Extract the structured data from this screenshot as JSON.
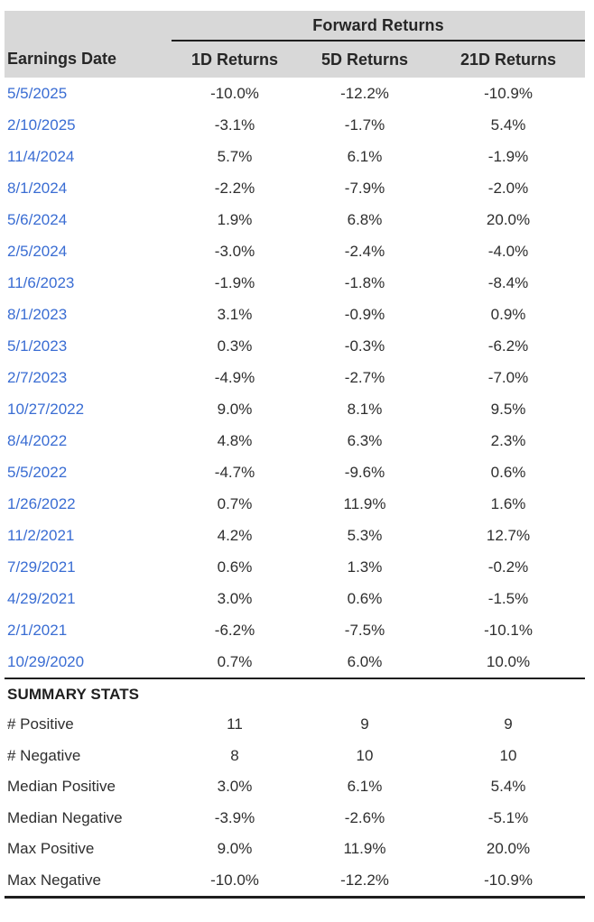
{
  "chart_data": {
    "type": "table",
    "title": "Forward Returns",
    "columns": [
      "Earnings Date",
      "1D Returns",
      "5D Returns",
      "21D Returns"
    ],
    "rows": [
      [
        "5/5/2025",
        "-10.0%",
        "-12.2%",
        "-10.9%"
      ],
      [
        "2/10/2025",
        "-3.1%",
        "-1.7%",
        "5.4%"
      ],
      [
        "11/4/2024",
        "5.7%",
        "6.1%",
        "-1.9%"
      ],
      [
        "8/1/2024",
        "-2.2%",
        "-7.9%",
        "-2.0%"
      ],
      [
        "5/6/2024",
        "1.9%",
        "6.8%",
        "20.0%"
      ],
      [
        "2/5/2024",
        "-3.0%",
        "-2.4%",
        "-4.0%"
      ],
      [
        "11/6/2023",
        "-1.9%",
        "-1.8%",
        "-8.4%"
      ],
      [
        "8/1/2023",
        "3.1%",
        "-0.9%",
        "0.9%"
      ],
      [
        "5/1/2023",
        "0.3%",
        "-0.3%",
        "-6.2%"
      ],
      [
        "2/7/2023",
        "-4.9%",
        "-2.7%",
        "-7.0%"
      ],
      [
        "10/27/2022",
        "9.0%",
        "8.1%",
        "9.5%"
      ],
      [
        "8/4/2022",
        "4.8%",
        "6.3%",
        "2.3%"
      ],
      [
        "5/5/2022",
        "-4.7%",
        "-9.6%",
        "0.6%"
      ],
      [
        "1/26/2022",
        "0.7%",
        "11.9%",
        "1.6%"
      ],
      [
        "11/2/2021",
        "4.2%",
        "5.3%",
        "12.7%"
      ],
      [
        "7/29/2021",
        "0.6%",
        "1.3%",
        "-0.2%"
      ],
      [
        "4/29/2021",
        "3.0%",
        "0.6%",
        "-1.5%"
      ],
      [
        "2/1/2021",
        "-6.2%",
        "-7.5%",
        "-10.1%"
      ],
      [
        "10/29/2020",
        "0.7%",
        "6.0%",
        "10.0%"
      ]
    ],
    "summary_title": "SUMMARY STATS",
    "summary_rows": [
      [
        "# Positive",
        "11",
        "9",
        "9"
      ],
      [
        "# Negative",
        "8",
        "10",
        "10"
      ],
      [
        "Median Positive",
        "3.0%",
        "6.1%",
        "5.4%"
      ],
      [
        "Median Negative",
        "-3.9%",
        "-2.6%",
        "-5.1%"
      ],
      [
        "Max Positive",
        "9.0%",
        "11.9%",
        "20.0%"
      ],
      [
        "Max Negative",
        "-10.0%",
        "-12.2%",
        "-10.9%"
      ]
    ],
    "layout": {
      "grid": false,
      "header_group_span": [
        1,
        2,
        3
      ]
    }
  },
  "colors": {
    "header_bg": "#d8d8d8",
    "date_link": "#3a6dd3",
    "text": "#2e2e2e",
    "rule": "#1e1e1e",
    "background": "#ffffff"
  }
}
